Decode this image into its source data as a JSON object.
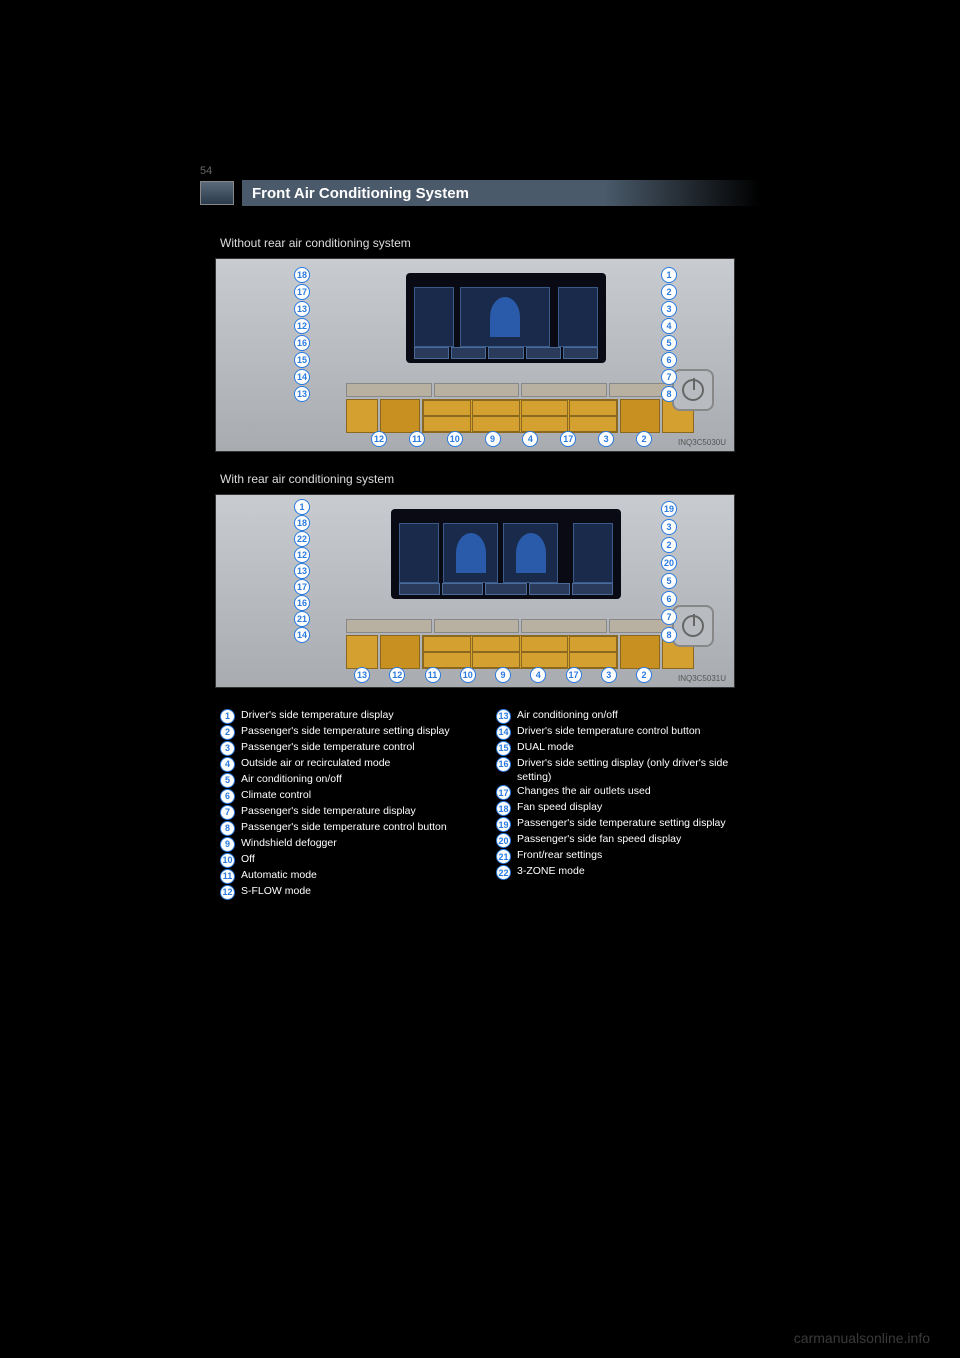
{
  "page_number": "54",
  "header": {
    "title": "Front Air Conditioning System"
  },
  "subtitles": {
    "fig1": "Without rear air conditioning system",
    "fig2": "With rear air conditioning system"
  },
  "figure1": {
    "label": "INQ3C5030U",
    "left_callouts": [
      "18",
      "17",
      "13",
      "12",
      "16",
      "15",
      "14",
      "13"
    ],
    "right_callouts": [
      "1",
      "2",
      "3",
      "4",
      "5",
      "6",
      "7",
      "8"
    ],
    "bottom_callouts": [
      "12",
      "11",
      "10",
      "9",
      "4",
      "17",
      "3",
      "2"
    ]
  },
  "figure2": {
    "label": "INQ3C5031U",
    "left_callouts": [
      "1",
      "18",
      "22",
      "12",
      "13",
      "17",
      "16",
      "21",
      "14"
    ],
    "right_callouts": [
      "19",
      "3",
      "2",
      "20",
      "5",
      "6",
      "7",
      "8"
    ],
    "bottom_callouts": [
      "13",
      "12",
      "11",
      "10",
      "9",
      "4",
      "17",
      "3",
      "2"
    ]
  },
  "legend": {
    "left": [
      {
        "n": "1",
        "t": "Driver's side temperature display"
      },
      {
        "n": "2",
        "t": "Passenger's side temperature setting display"
      },
      {
        "n": "3",
        "t": "Passenger's side temperature control"
      },
      {
        "n": "4",
        "t": "Outside air or recirculated mode"
      },
      {
        "n": "5",
        "t": "Air conditioning on/off"
      },
      {
        "n": "6",
        "t": "Climate control"
      },
      {
        "n": "7",
        "t": "Passenger's side temperature display"
      },
      {
        "n": "8",
        "t": "Passenger's side temperature control button"
      },
      {
        "n": "9",
        "t": "Windshield defogger"
      },
      {
        "n": "10",
        "t": "Off"
      },
      {
        "n": "11",
        "t": "Automatic mode"
      },
      {
        "n": "12",
        "t": "S-FLOW mode"
      }
    ],
    "right": [
      {
        "n": "13",
        "t": "Air conditioning on/off"
      },
      {
        "n": "14",
        "t": "Driver's side temperature control button"
      },
      {
        "n": "15",
        "t": "DUAL mode"
      },
      {
        "n": "16",
        "t": "Driver's side setting display (only driver's side setting)"
      },
      {
        "n": "17",
        "t": "Changes the air outlets used"
      },
      {
        "n": "18",
        "t": "Fan speed display"
      },
      {
        "n": "19",
        "t": "Passenger's side temperature setting display"
      },
      {
        "n": "20",
        "t": "Passenger's side fan speed display"
      },
      {
        "n": "21",
        "t": "Front/rear settings"
      },
      {
        "n": "22",
        "t": "3-ZONE mode"
      }
    ]
  },
  "watermark": "carmanualsonline.info",
  "colors": {
    "callout_border": "#2a7adf",
    "callout_text": "#2a7adf",
    "button_fill": "#d4a030",
    "screen_bg": "#0a0a15",
    "header_grad_from": "#4a5a6a"
  }
}
